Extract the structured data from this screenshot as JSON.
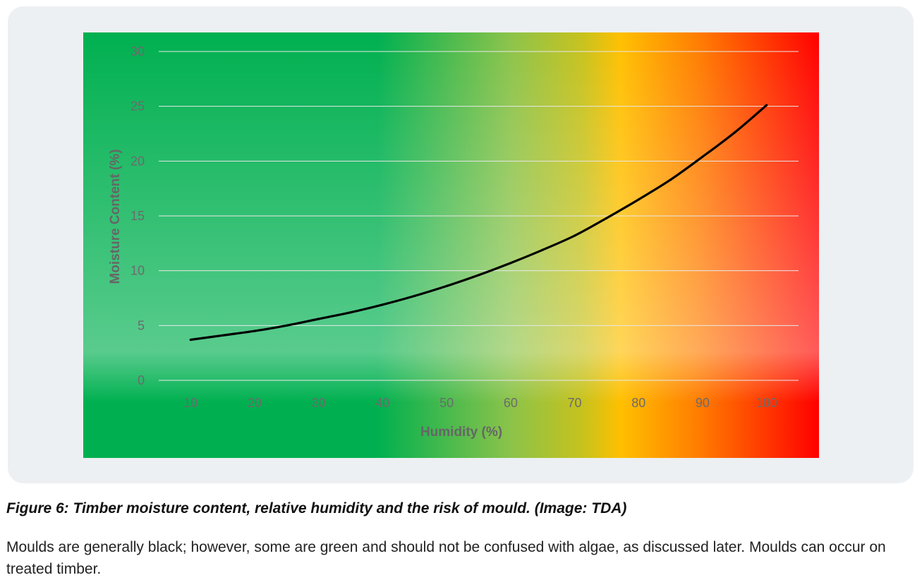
{
  "colors": {
    "card_bg": "#edf0f3",
    "gradient_stops": [
      {
        "at": 0.0,
        "color": "#00b050"
      },
      {
        "at": 0.4,
        "color": "#00b050"
      },
      {
        "at": 0.58,
        "color": "#8bc34a"
      },
      {
        "at": 0.68,
        "color": "#c8c21c"
      },
      {
        "at": 0.73,
        "color": "#ffc000"
      },
      {
        "at": 0.84,
        "color": "#ff7a00"
      },
      {
        "at": 1.0,
        "color": "#ff0000"
      }
    ],
    "overlay_stops": [
      {
        "at": 0.0,
        "color": "#ffffff",
        "opacity": 0
      },
      {
        "at": 0.75,
        "color": "#ffffff",
        "opacity": 0.35
      },
      {
        "at": 0.87,
        "color": "#ffffff",
        "opacity": 0
      }
    ],
    "curve": "#000000",
    "grid": "#e8e8e8"
  },
  "chart_data": {
    "type": "line",
    "xlabel": "Humidity (%)",
    "ylabel": "Moisture Content (%)",
    "xlim": [
      5,
      105
    ],
    "ylim": [
      0,
      30
    ],
    "x_ticks": [
      10,
      20,
      30,
      40,
      50,
      60,
      70,
      80,
      90,
      100
    ],
    "y_ticks": [
      0,
      5,
      10,
      15,
      20,
      25,
      30
    ],
    "grid": "horizontal",
    "legend": "none",
    "background": "horizontal green-yellow-red gradient",
    "series": [
      {
        "x": [
          10,
          15,
          20,
          25,
          30,
          35,
          40,
          45,
          50,
          55,
          60,
          65,
          70,
          75,
          80,
          85,
          90,
          95,
          100
        ],
        "values": [
          3.7,
          4.1,
          4.5,
          5.0,
          5.6,
          6.2,
          6.9,
          7.7,
          8.6,
          9.6,
          10.7,
          11.9,
          13.2,
          14.8,
          16.5,
          18.3,
          20.4,
          22.6,
          25.1
        ]
      }
    ]
  },
  "caption": "Figure 6: Timber moisture content, relative humidity and the risk of mould. (Image: TDA)",
  "body_text": "Moulds are generally black; however, some are green and should not be confused with algae, as discussed later. Moulds can occur on treated timber."
}
